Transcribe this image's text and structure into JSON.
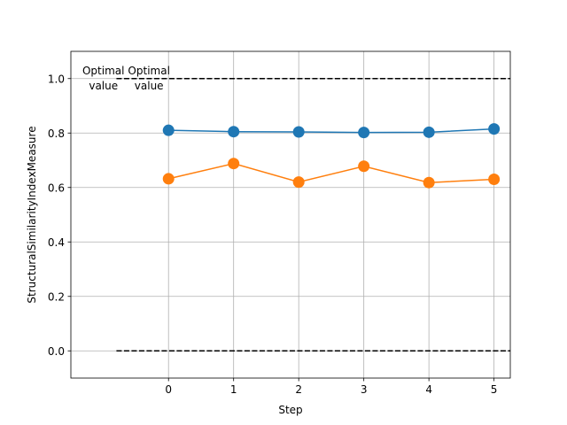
{
  "chart_data": {
    "type": "line",
    "title": "",
    "xlabel": "Step",
    "ylabel": "StructuralSimilarityIndexMeasure",
    "x": [
      0,
      1,
      2,
      3,
      4,
      5
    ],
    "xlim": [
      -1.5,
      5.25
    ],
    "ylim": [
      -0.1,
      1.1
    ],
    "xticks": [
      0,
      1,
      2,
      3,
      4,
      5
    ],
    "yticks": [
      0.0,
      0.2,
      0.4,
      0.6,
      0.8,
      1.0
    ],
    "xtick_labels": [
      "0",
      "1",
      "2",
      "3",
      "4",
      "5"
    ],
    "ytick_labels": [
      "0.0",
      "0.2",
      "0.4",
      "0.6",
      "0.8",
      "1.0"
    ],
    "grid": true,
    "series": [
      {
        "color": "#1f77b4",
        "values": [
          0.81,
          0.805,
          0.804,
          0.802,
          0.803,
          0.815
        ]
      },
      {
        "color": "#ff7f0e",
        "values": [
          0.632,
          0.688,
          0.62,
          0.678,
          0.618,
          0.63
        ]
      }
    ],
    "reference_lines": [
      {
        "y": 1.0,
        "color": "#000000",
        "style": "dashed",
        "label": "Optimal\nvalue"
      },
      {
        "y": 0.0,
        "color": "#000000",
        "style": "dashed",
        "label": ""
      }
    ],
    "annotations": [
      {
        "text": "Optimal\nvalue",
        "x": -1.0,
        "y": 1.0
      },
      {
        "text": "Optimal\nvalue",
        "x": -0.3,
        "y": 1.0
      }
    ]
  }
}
